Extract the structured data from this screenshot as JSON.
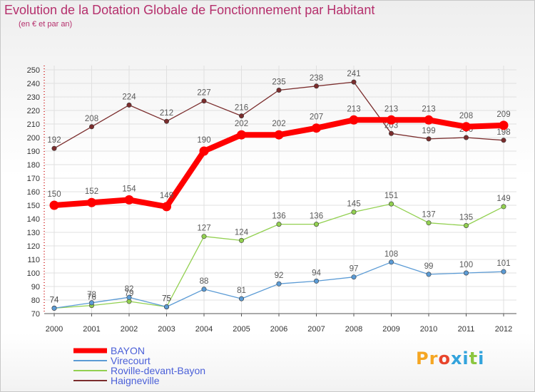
{
  "chart_data": {
    "type": "line",
    "title": "Evolution de la Dotation Globale de Fonctionnement par Habitant",
    "subtitle": "(en € et par an)",
    "xlabel": "",
    "ylabel": "",
    "ylim": [
      70,
      250
    ],
    "yticks": [
      70,
      80,
      90,
      100,
      110,
      120,
      130,
      140,
      150,
      160,
      170,
      180,
      190,
      200,
      210,
      220,
      230,
      240,
      250
    ],
    "categories": [
      "2000",
      "2001",
      "2002",
      "2003",
      "2004",
      "2005",
      "2006",
      "2007",
      "2008",
      "2009",
      "2010",
      "2011",
      "2012"
    ],
    "legend_position": "bottom-left",
    "series": [
      {
        "name": "BAYON",
        "color": "#ff0000",
        "labelColor": "#5a5a5a",
        "values": [
          150,
          152,
          154,
          149,
          190,
          202,
          202,
          207,
          213,
          213,
          213,
          208,
          209
        ]
      },
      {
        "name": "Virecourt",
        "color": "#5b9bd5",
        "labelColor": "#5a5a5a",
        "values": [
          74,
          78,
          82,
          75,
          88,
          81,
          92,
          94,
          97,
          108,
          99,
          100,
          101
        ]
      },
      {
        "name": "Roville-devant-Bayon",
        "color": "#92d050",
        "labelColor": "#5a5a5a",
        "values": [
          74,
          76,
          79,
          75,
          127,
          124,
          136,
          136,
          145,
          151,
          137,
          135,
          149
        ]
      },
      {
        "name": "Haigneville",
        "color": "#7b2d2d",
        "labelColor": "#5a5a5a",
        "values": [
          192,
          208,
          224,
          212,
          227,
          216,
          235,
          238,
          241,
          203,
          199,
          200,
          198
        ]
      }
    ]
  },
  "logo": {
    "text": "Proxiti",
    "letter_colors": [
      "#f5a623",
      "#f5a623",
      "#e8452c",
      "#33a3dc",
      "#33a3dc",
      "#8cc63f",
      "#33a3dc"
    ]
  },
  "legend_color": "#4a5fd8",
  "title_color": "#b52f6c"
}
